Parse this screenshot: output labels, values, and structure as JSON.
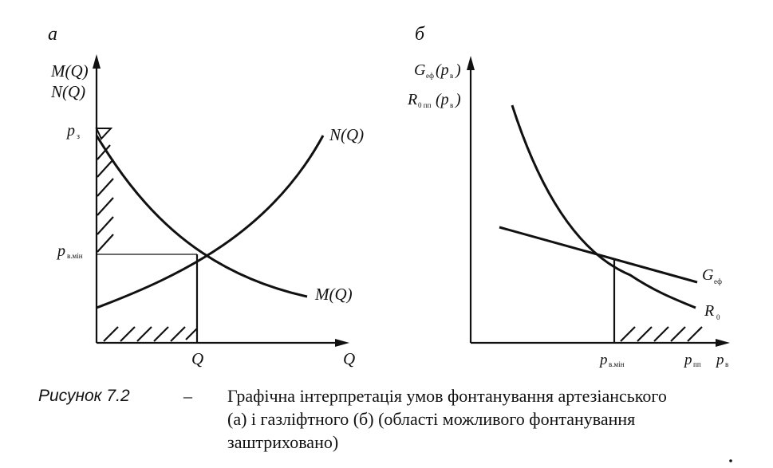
{
  "panel_a": {
    "letter": "а",
    "y_label_1": "M(Q)",
    "y_label_2": "N(Q)",
    "y_tick_top": "p",
    "y_tick_top_sub": "з",
    "y_tick_mid": "p",
    "y_tick_mid_sub": "в.мін",
    "x_tick": "Q",
    "x_axis": "Q",
    "curve_up_label": "N(Q)",
    "curve_down_label": "M(Q)"
  },
  "panel_b": {
    "letter": "б",
    "y_label_1": "G",
    "y_label_1_sub": "еф",
    "y_label_1_arg": "(p",
    "y_label_1_arg_sub": "в",
    "y_label_1_end": ")",
    "y_label_2": "R",
    "y_label_2_sub": "0 пп",
    "y_label_2_arg": "(p",
    "y_label_2_arg_sub": "в",
    "y_label_2_end": ")",
    "x_tick_1": "p",
    "x_tick_1_sub": "в.мін",
    "x_tick_2": "p",
    "x_tick_2_sub": "пп",
    "x_axis": "p",
    "x_axis_sub": "в",
    "line_label": "G",
    "line_label_sub": "еф",
    "curve_label": "R",
    "curve_label_sub": "0"
  },
  "caption": {
    "label": "Рисунок 7.2",
    "dash": "–",
    "line1": "Графічна інтерпретація умов фонтанування артезіанського",
    "line2": "(а) і газліфтного (б) (області можливого фонтанування",
    "line3": "заштриховано)"
  }
}
